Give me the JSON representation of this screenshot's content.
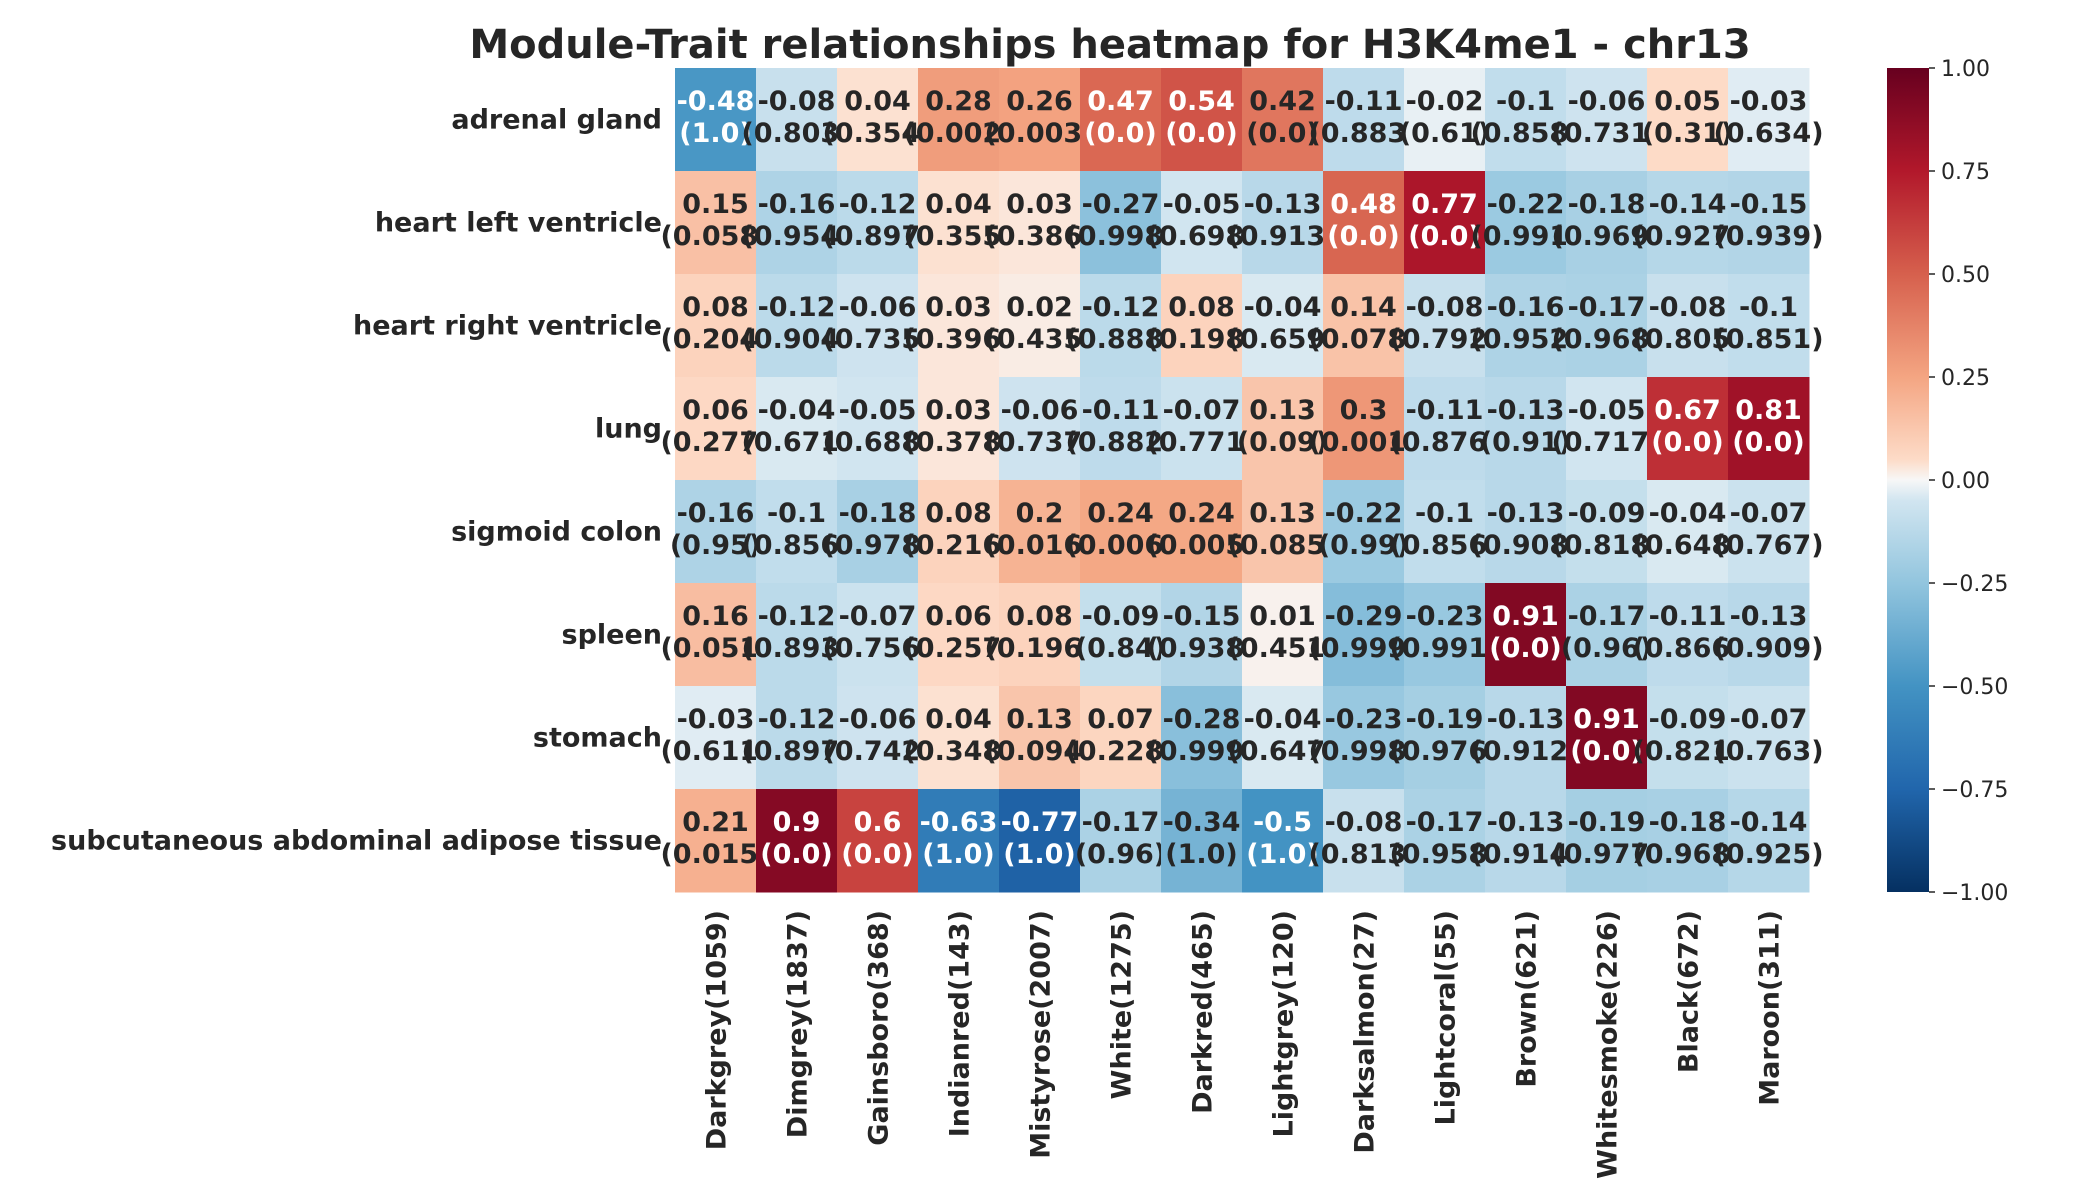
{
  "chart_data": {
    "type": "heatmap",
    "title": "Module-Trait relationships heatmap for H3K4me1 - chr13",
    "rows": [
      "adrenal gland",
      "heart left ventricle",
      "heart right ventricle",
      "lung",
      "sigmoid colon",
      "spleen",
      "stomach",
      "subcutaneous abdominal adipose tissue"
    ],
    "columns": [
      "Darkgrey(1059)",
      "Dimgrey(1837)",
      "Gainsboro(368)",
      "Indianred(143)",
      "Mistyrose(2007)",
      "White(1275)",
      "Darkred(465)",
      "Lightgrey(120)",
      "Darksalmon(27)",
      "Lightcoral(55)",
      "Brown(621)",
      "Whitesmoke(226)",
      "Black(672)",
      "Maroon(311)"
    ],
    "values": [
      [
        -0.48,
        -0.08,
        0.04,
        0.28,
        0.26,
        0.47,
        0.54,
        0.42,
        -0.11,
        -0.02,
        -0.1,
        -0.06,
        0.05,
        -0.03
      ],
      [
        0.15,
        -0.16,
        -0.12,
        0.04,
        0.03,
        -0.27,
        -0.05,
        -0.13,
        0.48,
        0.77,
        -0.22,
        -0.18,
        -0.14,
        -0.15
      ],
      [
        0.08,
        -0.12,
        -0.06,
        0.03,
        0.02,
        -0.12,
        0.08,
        -0.04,
        0.14,
        -0.08,
        -0.16,
        -0.17,
        -0.08,
        -0.1
      ],
      [
        0.06,
        -0.04,
        -0.05,
        0.03,
        -0.06,
        -0.11,
        -0.07,
        0.13,
        0.3,
        -0.11,
        -0.13,
        -0.05,
        0.67,
        0.81
      ],
      [
        -0.16,
        -0.1,
        -0.18,
        0.08,
        0.2,
        0.24,
        0.24,
        0.13,
        -0.22,
        -0.1,
        -0.13,
        -0.09,
        -0.04,
        -0.07
      ],
      [
        0.16,
        -0.12,
        -0.07,
        0.06,
        0.08,
        -0.09,
        -0.15,
        0.01,
        -0.29,
        -0.23,
        0.91,
        -0.17,
        -0.11,
        -0.13
      ],
      [
        -0.03,
        -0.12,
        -0.06,
        0.04,
        0.13,
        0.07,
        -0.28,
        -0.04,
        -0.23,
        -0.19,
        -0.13,
        0.91,
        -0.09,
        -0.07
      ],
      [
        0.21,
        0.9,
        0.6,
        -0.63,
        -0.77,
        -0.17,
        -0.34,
        -0.5,
        -0.08,
        -0.17,
        -0.13,
        -0.19,
        -0.18,
        -0.14
      ]
    ],
    "pvalues": [
      [
        "(1.0)",
        "(0.803)",
        "(0.354)",
        "(0.002)",
        "(0.003)",
        "(0.0)",
        "(0.0)",
        "(0.0)",
        "(0.883)",
        "(0.61)",
        "(0.858)",
        "(0.731)",
        "(0.31)",
        "(0.634)"
      ],
      [
        "(0.058)",
        "(0.954)",
        "(0.897)",
        "(0.355)",
        "(0.386)",
        "(0.998)",
        "(0.698)",
        "(0.913)",
        "(0.0)",
        "(0.0)",
        "(0.991)",
        "(0.969)",
        "(0.927)",
        "(0.939)"
      ],
      [
        "(0.204)",
        "(0.904)",
        "(0.735)",
        "(0.396)",
        "(0.435)",
        "(0.888)",
        "(0.198)",
        "(0.659)",
        "(0.078)",
        "(0.792)",
        "(0.952)",
        "(0.968)",
        "(0.805)",
        "(0.851)"
      ],
      [
        "(0.277)",
        "(0.671)",
        "(0.688)",
        "(0.378)",
        "(0.737)",
        "(0.882)",
        "(0.771)",
        "(0.09)",
        "(0.001)",
        "(0.876)",
        "(0.91)",
        "(0.717)",
        "(0.0)",
        "(0.0)"
      ],
      [
        "(0.95)",
        "(0.856)",
        "(0.978)",
        "(0.216)",
        "(0.016)",
        "(0.006)",
        "(0.005)",
        "(0.085)",
        "(0.99)",
        "(0.856)",
        "(0.908)",
        "(0.818)",
        "(0.648)",
        "(0.767)"
      ],
      [
        "(0.051)",
        "(0.893)",
        "(0.756)",
        "(0.257)",
        "(0.196)",
        "(0.84)",
        "(0.938)",
        "(0.451)",
        "(0.999)",
        "(0.991)",
        "(0.0)",
        "(0.96)",
        "(0.866)",
        "(0.909)"
      ],
      [
        "(0.611)",
        "(0.897)",
        "(0.742)",
        "(0.348)",
        "(0.094)",
        "(0.228)",
        "(0.999)",
        "(0.647)",
        "(0.998)",
        "(0.976)",
        "(0.912)",
        "(0.0)",
        "(0.821)",
        "(0.763)"
      ],
      [
        "(0.015)",
        "(0.0)",
        "(0.0)",
        "(1.0)",
        "(1.0)",
        "(0.96)",
        "(1.0)",
        "(1.0)",
        "(0.813)",
        "(0.958)",
        "(0.914)",
        "(0.977)",
        "(0.968)",
        "(0.925)"
      ]
    ],
    "colorbar": {
      "min": -1.0,
      "max": 1.0,
      "ticks": [
        "1.00",
        "0.75",
        "0.50",
        "0.25",
        "0.00",
        "−0.25",
        "−0.50",
        "−0.75",
        "−1.00"
      ],
      "colormap": "RdBu_r"
    }
  }
}
